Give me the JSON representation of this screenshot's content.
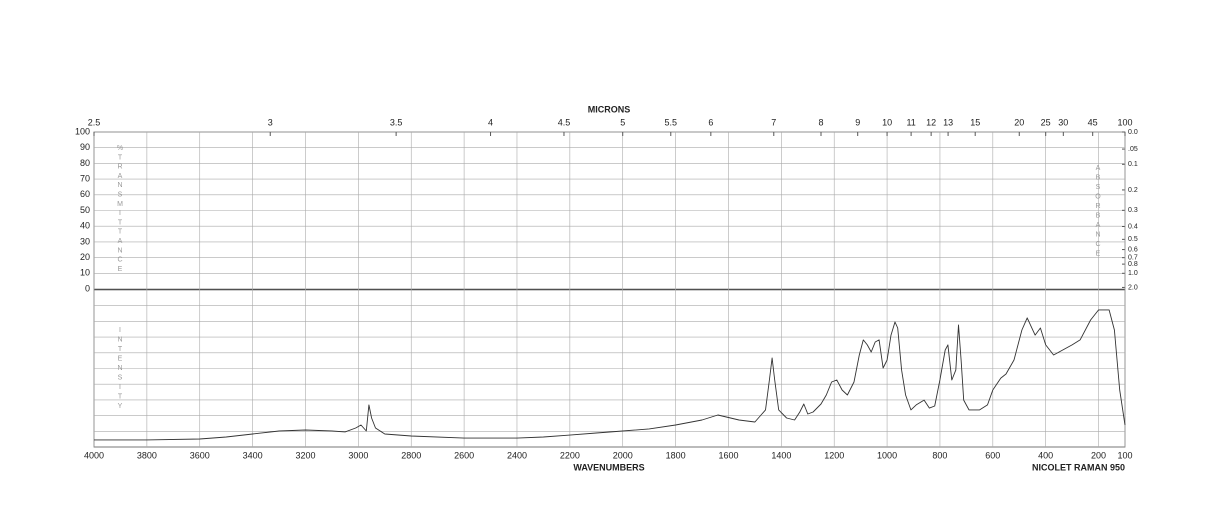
{
  "chart_data": {
    "type": "line",
    "title": "MICRONS",
    "x_label": "WAVENUMBERS",
    "instrument": "NICOLET RAMAN 950",
    "y_label": "%TRANSMITTANCE",
    "y2_label": "ABSORBANCE",
    "y3_label": "INTENSITY",
    "xlim": [
      4000,
      100
    ],
    "xticks": [
      4000,
      3800,
      3600,
      3400,
      3200,
      3000,
      2800,
      2600,
      2400,
      2200,
      2000,
      1800,
      1600,
      1400,
      1200,
      1000,
      800,
      600,
      400,
      200,
      100
    ],
    "x2ticks": [
      2.5,
      3,
      3.5,
      4,
      4.5,
      5,
      5.5,
      6,
      7,
      8,
      9,
      10,
      11,
      12,
      13,
      15,
      20,
      25,
      30,
      45,
      100
    ],
    "ylim": [
      0,
      100
    ],
    "yticks": [
      0,
      10,
      20,
      30,
      40,
      50,
      60,
      70,
      80,
      90,
      100
    ],
    "y2ticks": [
      {
        "value": 0,
        "label": "0.0"
      },
      {
        "value": 0.05,
        "label": ".05"
      },
      {
        "value": 0.1,
        "label": "0.1"
      },
      {
        "value": 0.2,
        "label": "0.2"
      },
      {
        "value": 0.3,
        "label": "0.3"
      },
      {
        "value": 0.4,
        "label": "0.4"
      },
      {
        "value": 0.5,
        "label": "0.5"
      },
      {
        "value": 0.6,
        "label": "0.6"
      },
      {
        "value": 0.7,
        "label": "0.7"
      },
      {
        "value": 0.8,
        "label": "0.8"
      },
      {
        "value": 1,
        "label": "1.0"
      },
      {
        "value": 2,
        "label": "2.0"
      }
    ],
    "y3lim": [
      0,
      100
    ],
    "y3grid": [
      10,
      20,
      30,
      40,
      50,
      60,
      70,
      80,
      90
    ],
    "grid": true,
    "color": "#333333",
    "x": [
      4000,
      3800,
      3600,
      3500,
      3400,
      3300,
      3200,
      3100,
      3050,
      3010,
      2990,
      2970,
      2960,
      2950,
      2935,
      2900,
      2800,
      2600,
      2400,
      2300,
      2200,
      2100,
      2000,
      1900,
      1800,
      1700,
      1640,
      1560,
      1500,
      1460,
      1445,
      1435,
      1425,
      1410,
      1380,
      1350,
      1330,
      1315,
      1300,
      1280,
      1250,
      1230,
      1210,
      1190,
      1170,
      1150,
      1125,
      1105,
      1090,
      1075,
      1060,
      1045,
      1030,
      1015,
      1000,
      985,
      970,
      960,
      945,
      930,
      910,
      890,
      860,
      840,
      820,
      800,
      780,
      770,
      755,
      740,
      730,
      720,
      710,
      690,
      650,
      620,
      600,
      570,
      550,
      520,
      490,
      470,
      440,
      420,
      400,
      370,
      300,
      270,
      230,
      200,
      160,
      140,
      120,
      100
    ],
    "values": [
      4.5,
      4.5,
      5.1,
      6.4,
      8.3,
      10.2,
      10.8,
      10.2,
      9.6,
      12.1,
      14.0,
      10.2,
      26.8,
      18.5,
      12.1,
      8.3,
      7.0,
      5.7,
      5.7,
      6.4,
      7.6,
      8.9,
      10.2,
      11.5,
      14.0,
      17.2,
      20.4,
      17.2,
      15.9,
      23.6,
      42.7,
      56.7,
      42.7,
      23.6,
      18.5,
      17.2,
      22.3,
      27.4,
      21.0,
      22.3,
      27.4,
      33.1,
      41.4,
      42.7,
      36.3,
      33.1,
      41.4,
      58.6,
      68.2,
      65.0,
      60.5,
      66.9,
      68.2,
      50.3,
      55.4,
      71.3,
      79.6,
      75.8,
      49.0,
      33.1,
      23.6,
      26.8,
      29.9,
      24.8,
      26.1,
      42.7,
      61.8,
      65.0,
      42.7,
      49.0,
      77.7,
      55.4,
      29.9,
      23.6,
      23.6,
      26.8,
      36.3,
      43.9,
      46.5,
      55.4,
      74.5,
      82.2,
      71.3,
      75.8,
      65.0,
      58.6,
      65.0,
      68.2,
      80.9,
      87.3,
      87.3,
      74.5,
      36.3,
      14.0
    ]
  }
}
